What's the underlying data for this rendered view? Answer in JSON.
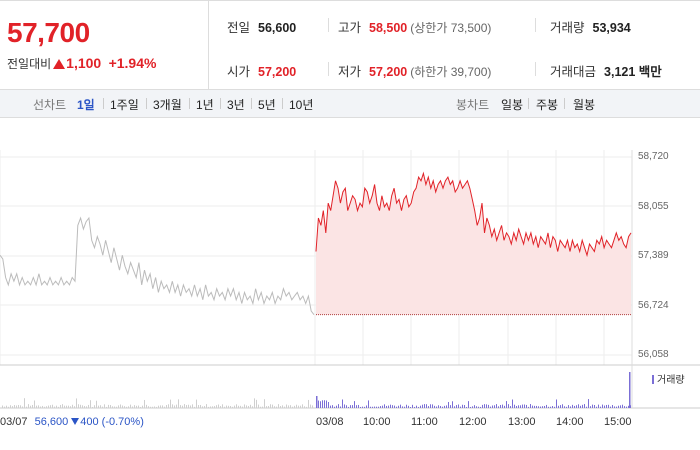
{
  "quote": {
    "price": "57,700",
    "change_label": "전일대비",
    "change_value": "1,100",
    "change_pct": "+1.94%"
  },
  "stats": {
    "prev_close": {
      "label": "전일",
      "value": "56,600"
    },
    "high": {
      "label": "고가",
      "value": "58,500",
      "sub": "(상한가 73,500)"
    },
    "volume": {
      "label": "거래량",
      "value": "53,934"
    },
    "open": {
      "label": "시가",
      "value": "57,200"
    },
    "low": {
      "label": "저가",
      "value": "57,200",
      "sub": "(하한가 39,700)"
    },
    "amount": {
      "label": "거래대금",
      "value": "3,121 백만"
    }
  },
  "toolbar": {
    "line_chart_label": "선차트",
    "periods": [
      "1일",
      "1주일",
      "3개월",
      "1년",
      "3년",
      "5년",
      "10년"
    ],
    "active_period": "1일",
    "candle_chart_label": "봉차트",
    "candles": [
      "일봉",
      "주봉",
      "월봉"
    ]
  },
  "chart_data": {
    "type": "line",
    "y_ticks": [
      "58,720",
      "58,055",
      "57,389",
      "56,724",
      "56,058"
    ],
    "ylim": [
      56058,
      58720
    ],
    "x_ticks": [
      "03/07",
      "03/08",
      "10:00",
      "11:00",
      "12:00",
      "13:00",
      "14:00",
      "15:00"
    ],
    "prev_day": {
      "date": "03/07",
      "close": "56,600",
      "change": "400",
      "change_pct": "(-0.70%)"
    },
    "volume_legend": "거래량",
    "prev_close_line": 56600,
    "colors": {
      "today": "#e12228",
      "prev": "#bbbbbb",
      "fill": "#fbe4e4",
      "volume": "#7b6fd6"
    },
    "series": [
      {
        "values": [
          57400,
          57350,
          57100,
          57000,
          57150,
          57050,
          57150,
          57000,
          57100,
          57000,
          57050,
          57000,
          57100,
          57000,
          57150,
          57000,
          57050,
          57000,
          57100,
          57000,
          57050,
          57000,
          57100,
          57000,
          57050,
          57000,
          57100,
          57050,
          57800,
          57900,
          57750,
          57850,
          57900,
          57600,
          57500,
          57650,
          57550,
          57400,
          57600,
          57450,
          57300,
          57500,
          57350,
          57200,
          57400,
          57250,
          57150,
          57300,
          57200,
          57100,
          57300,
          57000,
          57200,
          57050,
          57150,
          56950,
          57100,
          56900,
          57050,
          56950,
          57000,
          56900,
          57050,
          56900,
          57000,
          56850,
          57000,
          56900,
          56950,
          56850,
          57000,
          56850,
          56950,
          56800,
          57000,
          56850,
          56900,
          56800,
          56950,
          56850,
          56900,
          56800,
          56950,
          56850,
          56950,
          56800,
          56900,
          56750,
          56900,
          56800,
          56850,
          56750,
          56950,
          56800,
          56900,
          56750,
          56850,
          56800,
          56900,
          56750,
          56850,
          56800,
          56950,
          56850,
          56900,
          56800,
          56850,
          56900,
          56800,
          56850,
          56750,
          56850,
          56650,
          56600
        ]
      },
      {
        "values": [
          57450,
          57900,
          57800,
          58000,
          57700,
          58100,
          58000,
          58200,
          58400,
          58300,
          58100,
          58250,
          58300,
          58000,
          58100,
          58200,
          58150,
          58000,
          58100,
          58050,
          58300,
          58250,
          58100,
          58200,
          58350,
          58100,
          58000,
          58200,
          58050,
          58100,
          58000,
          58200,
          58300,
          58100,
          58150,
          58000,
          58150,
          58200,
          58050,
          58100,
          58250,
          58300,
          58450,
          58400,
          58500,
          58350,
          58450,
          58300,
          58400,
          58250,
          58350,
          58400,
          58300,
          58400,
          58450,
          58350,
          58400,
          58250,
          58300,
          58400,
          58300,
          58350,
          58400,
          58300,
          58150,
          58000,
          57800,
          57900,
          58100,
          57700,
          57900,
          57800,
          57650,
          57750,
          57600,
          57700,
          57800,
          57600,
          57700,
          57650,
          57550,
          57700,
          57600,
          57750,
          57650,
          57550,
          57700,
          57600,
          57700,
          57550,
          57650,
          57500,
          57650,
          57600,
          57550,
          57700,
          57500,
          57650,
          57600,
          57450,
          57600,
          57550,
          57500,
          57600,
          57450,
          57600,
          57500,
          57550,
          57450,
          57600,
          57500,
          57400,
          57550,
          57500,
          57450,
          57600,
          57550,
          57650,
          57500,
          57600,
          57550,
          57500,
          57600,
          57700,
          57600,
          57650,
          57550,
          57500,
          57650,
          57700
        ]
      }
    ]
  }
}
